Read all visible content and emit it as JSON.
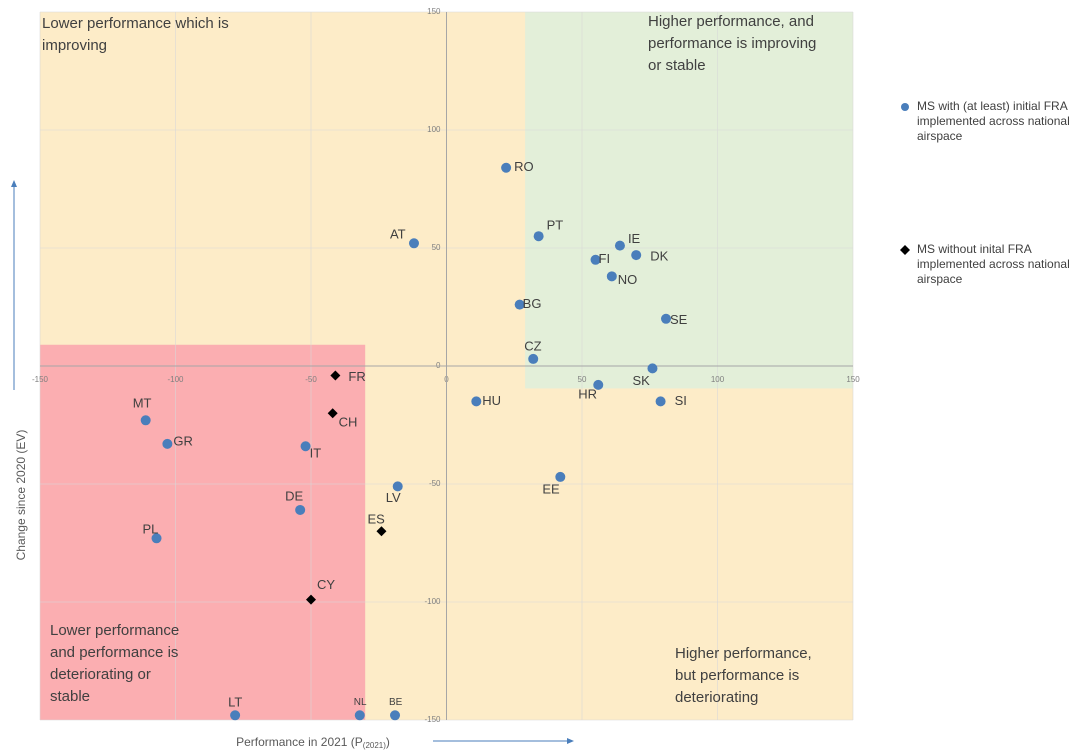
{
  "chart_data": {
    "type": "scatter",
    "x_label": [
      "Performance in 2021 (P",
      "(2021)",
      ")"
    ],
    "y_label": "Change since 2020 (EV)",
    "xlim": [
      -150,
      150
    ],
    "ylim": [
      -150,
      150
    ],
    "xticks": [
      -150,
      -100,
      -50,
      0,
      50,
      100,
      150
    ],
    "yticks": [
      -150,
      -100,
      -50,
      0,
      50,
      100,
      150
    ],
    "grid": true,
    "legend": "right",
    "regions": [
      {
        "color": "#fdecc8",
        "x": [
          -150,
          150
        ],
        "y": [
          -150,
          150
        ]
      },
      {
        "color": "#e3efd9",
        "x": [
          29,
          150
        ],
        "y": [
          -9.5,
          150
        ]
      },
      {
        "color": "#fbaeb1",
        "x": [
          -150,
          -30
        ],
        "y": [
          -150,
          9
        ]
      }
    ],
    "annotations": [
      {
        "lines": [
          "Lower performance which is",
          "improving"
        ]
      },
      {
        "lines": [
          "Higher performance, and",
          "performance is improving",
          "or stable"
        ]
      },
      {
        "lines": [
          "Lower performance",
          "and performance is",
          "deteriorating or",
          "stable"
        ]
      },
      {
        "lines": [
          "Higher performance,",
          "but performance is",
          "deteriorating"
        ]
      }
    ],
    "series": [
      {
        "name": "MS with (at least) initial FRA implemented across national airspace",
        "marker": "circle",
        "color": "#4a7ebb",
        "labels": [
          "RO",
          "PT",
          "AT",
          "IE",
          "DK",
          "FI",
          "NO",
          "BG",
          "SE",
          "CZ",
          "SK",
          "HR",
          "HU",
          "SI",
          "MT",
          "GR",
          "IT",
          "EE",
          "LV",
          "DE",
          "PL",
          "LT",
          "NL",
          "BE"
        ],
        "x": [
          22,
          34,
          -12,
          64,
          70,
          55,
          61,
          27,
          81,
          32,
          76,
          56,
          11,
          79,
          -111,
          -103,
          -52,
          42,
          -18,
          -54,
          -107,
          -78,
          -32,
          -19
        ],
        "values": [
          84,
          55,
          52,
          51,
          47,
          45,
          38,
          26,
          20,
          3,
          -1,
          -8,
          -15,
          -15,
          -23,
          -33,
          -34,
          -47,
          -51,
          -61,
          -73,
          -148,
          -148,
          -148
        ]
      },
      {
        "name": "MS without inital FRA implemented across national airspace",
        "marker": "diamond",
        "color": "#000000",
        "labels": [
          "FR",
          "CH",
          "ES",
          "CY"
        ],
        "x": [
          -41,
          -42,
          -24,
          -50
        ],
        "values": [
          -4,
          -20,
          -70,
          -99
        ]
      }
    ]
  }
}
